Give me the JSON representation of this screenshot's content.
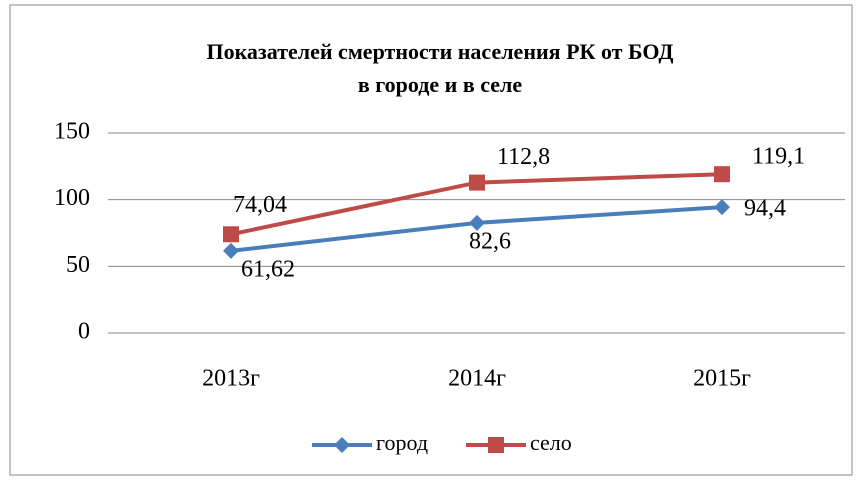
{
  "chart_data": {
    "type": "line",
    "title": [
      "Показателей смертности населения РК  от БОД",
      "в  городе и  в селе"
    ],
    "categories": [
      "2013г",
      "2014г",
      "2015г"
    ],
    "series": [
      {
        "name": "город",
        "color": "#4a7ebb",
        "marker": "diamond",
        "values": [
          61.62,
          82.6,
          94.4
        ],
        "value_labels": [
          "61,62",
          "82,6",
          "94,4"
        ]
      },
      {
        "name": "село",
        "color": "#be4b48",
        "marker": "square",
        "values": [
          74.04,
          112.8,
          119.1
        ],
        "value_labels": [
          "74,04",
          "112,8",
          "119,1"
        ]
      }
    ],
    "ylim": [
      0,
      150
    ],
    "yticks": [
      0,
      50,
      100,
      150
    ],
    "grid": true,
    "legend": "bottom"
  }
}
